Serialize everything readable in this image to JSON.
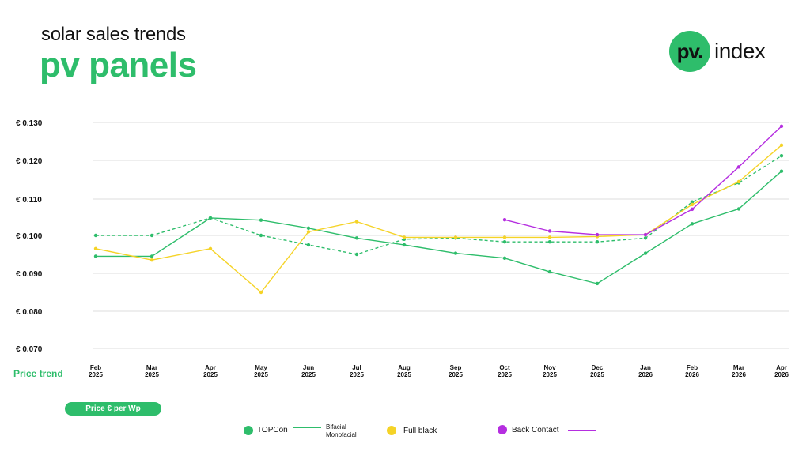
{
  "header": {
    "subtitle": "solar sales trends",
    "title": "pv panels"
  },
  "logo": {
    "mark": "pv.",
    "text": "index"
  },
  "axis": {
    "price_trend_label": "Price trend",
    "unit_label": "Price € per Wp"
  },
  "colors": {
    "green": "#2ebd6b",
    "yellow": "#f5d327",
    "purple": "#b52ee0",
    "grid": "#dddddd"
  },
  "legend": {
    "topcon": "TOPCon",
    "bifacial": "Bifacial",
    "monofacial": "Monofacial",
    "full_black": "Full black",
    "back_contact": "Back Contact"
  },
  "chart_data": {
    "type": "line",
    "yticks": [
      "€ 0.130",
      "€ 0.120",
      "€ 0.110",
      "€ 0.100",
      "€ 0.090",
      "€ 0.080",
      "€ 0.070"
    ],
    "ylim": [
      0.07,
      0.13
    ],
    "categories": [
      [
        "Feb",
        "2025"
      ],
      [
        "Mar",
        "2025"
      ],
      [
        "Apr",
        "2025"
      ],
      [
        "May",
        "2025"
      ],
      [
        "Jun",
        "2025"
      ],
      [
        "Jul",
        "2025"
      ],
      [
        "Aug",
        "2025"
      ],
      [
        "Sep",
        "2025"
      ],
      [
        "Oct",
        "2025"
      ],
      [
        "Nov",
        "2025"
      ],
      [
        "Dec",
        "2025"
      ],
      [
        "Jan",
        "2026"
      ],
      [
        "Feb",
        "2026"
      ],
      [
        "Mar",
        "2026"
      ],
      [
        "Apr",
        "2026"
      ]
    ],
    "series": [
      {
        "key": "topcon_bifacial",
        "color": "#2ebd6b",
        "dash": false,
        "values": [
          0.0945,
          0.0945,
          0.1048,
          0.1042,
          0.102,
          0.0993,
          0.0975,
          0.0953,
          0.094,
          0.0904,
          0.0873,
          0.0953,
          0.1032,
          0.1073,
          0.1172
        ]
      },
      {
        "key": "topcon_monofacial",
        "color": "#2ebd6b",
        "dash": true,
        "values": [
          0.1,
          0.1,
          0.1048,
          0.1,
          0.0975,
          0.095,
          0.099,
          0.0993,
          0.0983,
          0.0983,
          0.0983,
          0.0993,
          0.1092,
          0.1142,
          0.1212
        ]
      },
      {
        "key": "full_black",
        "color": "#f5d327",
        "dash": false,
        "values": [
          0.0965,
          0.0935,
          0.0965,
          0.085,
          0.101,
          0.1038,
          0.0995,
          0.0995,
          0.0995,
          0.0995,
          0.0997,
          0.1002,
          0.1085,
          0.1145,
          0.124
        ]
      },
      {
        "key": "back_contact",
        "color": "#b52ee0",
        "dash": false,
        "values": [
          null,
          null,
          null,
          null,
          null,
          null,
          null,
          null,
          0.1043,
          0.1012,
          0.1002,
          0.1002,
          0.1072,
          0.1183,
          0.129
        ]
      }
    ]
  }
}
